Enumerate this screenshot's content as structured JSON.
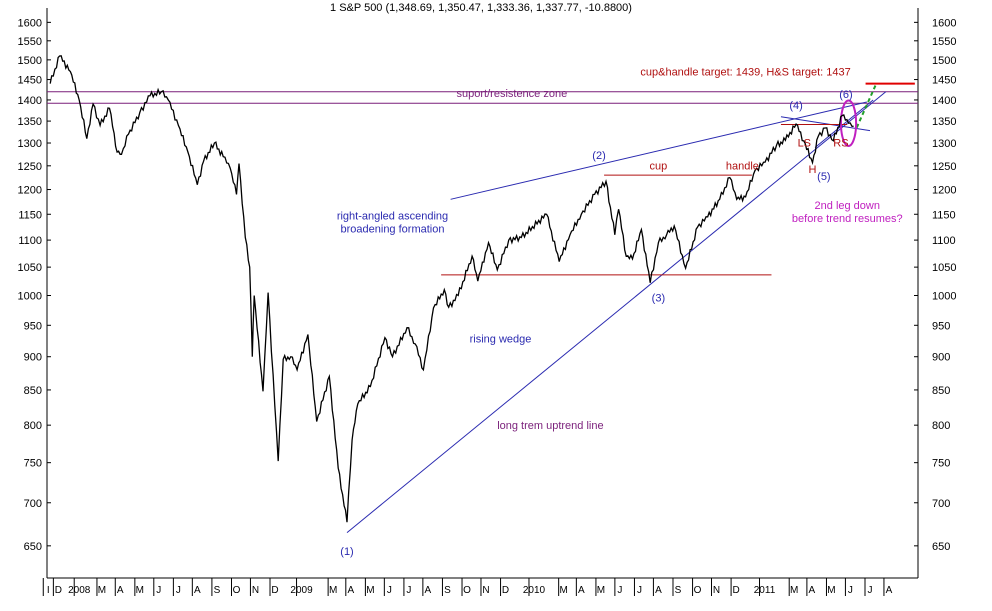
{
  "chart_data": {
    "type": "line",
    "title": "1 S&P 500 (1,348.69, 1,350.47, 1,333.36, 1,337.77, -10.8800)",
    "y_scale": "log",
    "ylim": [
      615,
      1640
    ],
    "y_ticks": [
      650,
      700,
      750,
      800,
      850,
      900,
      950,
      1000,
      1050,
      1100,
      1150,
      1200,
      1250,
      1300,
      1350,
      1400,
      1450,
      1500,
      1550,
      1600
    ],
    "x_range": [
      "2007-11-20",
      "2011-08-30"
    ],
    "x_tick_labels": [
      {
        "date": "2007-11-22",
        "label": "I"
      },
      {
        "date": "2007-12-08",
        "label": "D"
      },
      {
        "date": "2008-01-10",
        "label": "2008"
      },
      {
        "date": "2008-02-15",
        "label": "M"
      },
      {
        "date": "2008-03-15",
        "label": "A"
      },
      {
        "date": "2008-04-15",
        "label": "M"
      },
      {
        "date": "2008-05-15",
        "label": "J"
      },
      {
        "date": "2008-06-15",
        "label": "J"
      },
      {
        "date": "2008-07-15",
        "label": "A"
      },
      {
        "date": "2008-08-15",
        "label": "S"
      },
      {
        "date": "2008-09-15",
        "label": "O"
      },
      {
        "date": "2008-10-15",
        "label": "N"
      },
      {
        "date": "2008-11-15",
        "label": "D"
      },
      {
        "date": "2008-12-27",
        "label": "2009"
      },
      {
        "date": "2009-02-15",
        "label": "M"
      },
      {
        "date": "2009-03-15",
        "label": "A"
      },
      {
        "date": "2009-04-15",
        "label": "M"
      },
      {
        "date": "2009-05-15",
        "label": "J"
      },
      {
        "date": "2009-06-15",
        "label": "J"
      },
      {
        "date": "2009-07-15",
        "label": "A"
      },
      {
        "date": "2009-08-15",
        "label": "S"
      },
      {
        "date": "2009-09-15",
        "label": "O"
      },
      {
        "date": "2009-10-15",
        "label": "N"
      },
      {
        "date": "2009-11-15",
        "label": "D"
      },
      {
        "date": "2009-12-30",
        "label": "2010"
      },
      {
        "date": "2010-02-15",
        "label": "M"
      },
      {
        "date": "2010-03-15",
        "label": "A"
      },
      {
        "date": "2010-04-15",
        "label": "M"
      },
      {
        "date": "2010-05-15",
        "label": "J"
      },
      {
        "date": "2010-06-15",
        "label": "J"
      },
      {
        "date": "2010-07-15",
        "label": "A"
      },
      {
        "date": "2010-08-15",
        "label": "S"
      },
      {
        "date": "2010-09-15",
        "label": "O"
      },
      {
        "date": "2010-10-15",
        "label": "N"
      },
      {
        "date": "2010-11-15",
        "label": "D"
      },
      {
        "date": "2010-12-30",
        "label": "2011"
      },
      {
        "date": "2011-02-15",
        "label": "M"
      },
      {
        "date": "2011-03-15",
        "label": "A"
      },
      {
        "date": "2011-04-15",
        "label": "M"
      },
      {
        "date": "2011-05-15",
        "label": "J"
      },
      {
        "date": "2011-06-15",
        "label": "J"
      },
      {
        "date": "2011-07-15",
        "label": "A"
      }
    ],
    "series": [
      {
        "color": "#000000",
        "points": [
          [
            "2007-11-25",
            1440
          ],
          [
            "2007-12-10",
            1510
          ],
          [
            "2007-12-27",
            1470
          ],
          [
            "2008-01-10",
            1400
          ],
          [
            "2008-01-22",
            1310
          ],
          [
            "2008-02-01",
            1390
          ],
          [
            "2008-02-12",
            1340
          ],
          [
            "2008-02-27",
            1380
          ],
          [
            "2008-03-10",
            1280
          ],
          [
            "2008-03-17",
            1275
          ],
          [
            "2008-03-28",
            1320
          ],
          [
            "2008-04-15",
            1370
          ],
          [
            "2008-05-01",
            1410
          ],
          [
            "2008-05-19",
            1420
          ],
          [
            "2008-05-30",
            1400
          ],
          [
            "2008-06-15",
            1340
          ],
          [
            "2008-06-30",
            1280
          ],
          [
            "2008-07-15",
            1210
          ],
          [
            "2008-07-25",
            1260
          ],
          [
            "2008-08-11",
            1300
          ],
          [
            "2008-08-25",
            1270
          ],
          [
            "2008-09-05",
            1245
          ],
          [
            "2008-09-15",
            1190
          ],
          [
            "2008-09-19",
            1255
          ],
          [
            "2008-09-29",
            1105
          ],
          [
            "2008-10-06",
            1050
          ],
          [
            "2008-10-10",
            900
          ],
          [
            "2008-10-13",
            1000
          ],
          [
            "2008-10-27",
            848
          ],
          [
            "2008-11-04",
            1005
          ],
          [
            "2008-11-20",
            752
          ],
          [
            "2008-11-28",
            896
          ],
          [
            "2008-12-10",
            900
          ],
          [
            "2008-12-20",
            880
          ],
          [
            "2009-01-06",
            935
          ],
          [
            "2009-01-20",
            805
          ],
          [
            "2009-02-09",
            870
          ],
          [
            "2009-02-23",
            743
          ],
          [
            "2009-03-09",
            677
          ],
          [
            "2009-03-17",
            780
          ],
          [
            "2009-03-26",
            830
          ],
          [
            "2009-04-15",
            855
          ],
          [
            "2009-05-08",
            930
          ],
          [
            "2009-05-20",
            900
          ],
          [
            "2009-06-12",
            946
          ],
          [
            "2009-06-25",
            920
          ],
          [
            "2009-07-08",
            880
          ],
          [
            "2009-07-24",
            979
          ],
          [
            "2009-08-10",
            1010
          ],
          [
            "2009-08-17",
            980
          ],
          [
            "2009-09-01",
            1000
          ],
          [
            "2009-09-23",
            1070
          ],
          [
            "2009-10-02",
            1025
          ],
          [
            "2009-10-19",
            1095
          ],
          [
            "2009-11-02",
            1045
          ],
          [
            "2009-11-20",
            1100
          ],
          [
            "2009-12-10",
            1105
          ],
          [
            "2010-01-19",
            1150
          ],
          [
            "2010-02-08",
            1060
          ],
          [
            "2010-02-25",
            1110
          ],
          [
            "2010-03-15",
            1150
          ],
          [
            "2010-04-05",
            1190
          ],
          [
            "2010-04-23",
            1217
          ],
          [
            "2010-05-07",
            1110
          ],
          [
            "2010-05-13",
            1160
          ],
          [
            "2010-05-25",
            1070
          ],
          [
            "2010-06-04",
            1065
          ],
          [
            "2010-06-18",
            1120
          ],
          [
            "2010-07-02",
            1022
          ],
          [
            "2010-07-15",
            1095
          ],
          [
            "2010-07-28",
            1110
          ],
          [
            "2010-08-09",
            1127
          ],
          [
            "2010-08-27",
            1048
          ],
          [
            "2010-09-15",
            1125
          ],
          [
            "2010-10-01",
            1145
          ],
          [
            "2010-10-20",
            1180
          ],
          [
            "2010-11-05",
            1225
          ],
          [
            "2010-11-16",
            1180
          ],
          [
            "2010-11-30",
            1185
          ],
          [
            "2010-12-15",
            1240
          ],
          [
            "2010-12-31",
            1258
          ],
          [
            "2011-01-18",
            1295
          ],
          [
            "2011-02-01",
            1306
          ],
          [
            "2011-02-18",
            1343
          ],
          [
            "2011-03-02",
            1305
          ],
          [
            "2011-03-16",
            1257
          ],
          [
            "2011-03-25",
            1315
          ],
          [
            "2011-04-05",
            1334
          ],
          [
            "2011-04-18",
            1305
          ],
          [
            "2011-05-02",
            1363
          ],
          [
            "2011-05-12",
            1345
          ],
          [
            "2011-05-20",
            1338
          ]
        ]
      }
    ],
    "lines": [
      {
        "name": "support-resistance-top",
        "color": "#7a1f7a",
        "from": [
          "2007-11-20",
          1420
        ],
        "to": [
          "2011-08-30",
          1420
        ]
      },
      {
        "name": "support-resistance-bottom",
        "color": "#7a1f7a",
        "from": [
          "2007-11-20",
          1392
        ],
        "to": [
          "2011-08-30",
          1392
        ]
      },
      {
        "name": "long-term-uptrend",
        "color": "#2a2ab0",
        "from": [
          "2009-03-09",
          665
        ],
        "to": [
          "2011-07-10",
          1420
        ]
      },
      {
        "name": "broadening-upper",
        "color": "#2a2ab0",
        "from": [
          "2009-08-20",
          1180
        ],
        "to": [
          "2011-06-10",
          1395
        ]
      },
      {
        "name": "wedge-lower",
        "color": "#2a2ab0",
        "from": [
          "2011-01-25",
          1360
        ],
        "to": [
          "2011-06-15",
          1328
        ]
      },
      {
        "name": "wedge-upper",
        "color": "#2a2ab0",
        "from": [
          "2011-03-20",
          1290
        ],
        "to": [
          "2011-06-20",
          1400
        ]
      },
      {
        "name": "cup-rim",
        "color": "#b01010",
        "from": [
          "2010-04-20",
          1230
        ],
        "to": [
          "2010-12-10",
          1230
        ]
      },
      {
        "name": "neckline",
        "color": "#b01010",
        "from": [
          "2011-01-25",
          1342
        ],
        "to": [
          "2011-05-10",
          1342
        ]
      },
      {
        "name": "breakout-base",
        "color": "#b01010",
        "from": [
          "2009-08-05",
          1036
        ],
        "to": [
          "2011-01-10",
          1036
        ]
      },
      {
        "name": "target-line",
        "color": "#e00000",
        "from": [
          "2011-06-08",
          1440
        ],
        "to": [
          "2011-08-25",
          1440
        ]
      },
      {
        "name": "target-path",
        "color": "#22a02a",
        "dash": true,
        "from": [
          "2011-05-25",
          1335
        ],
        "to": [
          "2011-06-25",
          1440
        ]
      }
    ],
    "circle": {
      "name": "rs-circle",
      "color": "#c020c0",
      "center": [
        "2011-05-12",
        1345
      ],
      "rx_days": 12,
      "ry_ratio": 1.04
    },
    "annotations": [
      {
        "name": "annotation-targets",
        "text": "cup&handle target: 1439,       H&S target: 1437",
        "color": "#b01010",
        "at": [
          "2010-11-30",
          1460
        ]
      },
      {
        "name": "annotation-zone",
        "text": "suport/resistence zone",
        "color": "#7a1f7a",
        "at": [
          "2009-11-25",
          1407
        ]
      },
      {
        "name": "annotation-broadening",
        "text": "right-angled ascending\nbroadening formation",
        "color": "#2a2ab0",
        "at": [
          "2009-05-20",
          1140
        ]
      },
      {
        "name": "annotation-rising-wedge",
        "text": "rising wedge",
        "color": "#2a2ab0",
        "at": [
          "2009-11-07",
          922
        ]
      },
      {
        "name": "annotation-uptrend",
        "text": "long trem uptrend line",
        "color": "#7a1f7a",
        "at": [
          "2010-01-25",
          795
        ]
      },
      {
        "name": "annotation-second-leg",
        "text": "2nd leg down\nbefore trend resumes?",
        "color": "#c020c0",
        "at": [
          "2011-05-10",
          1160
        ]
      },
      {
        "name": "annotation-cup",
        "text": "cup",
        "color": "#b01010",
        "at": [
          "2010-07-15",
          1242
        ]
      },
      {
        "name": "annotation-handle",
        "text": "handle",
        "color": "#b01010",
        "at": [
          "2010-11-25",
          1242
        ]
      },
      {
        "name": "annotation-ls",
        "text": "LS",
        "color": "#b01010",
        "at": [
          "2011-03-03",
          1292
        ]
      },
      {
        "name": "annotation-h",
        "text": "H",
        "color": "#b01010",
        "at": [
          "2011-03-16",
          1235
        ]
      },
      {
        "name": "annotation-rs",
        "text": "RS",
        "color": "#b01010",
        "at": [
          "2011-04-30",
          1292
        ]
      },
      {
        "name": "annotation-wave-1",
        "text": "(1)",
        "color": "#2a2ab0",
        "at": [
          "2009-03-09",
          640
        ]
      },
      {
        "name": "annotation-wave-2",
        "text": "(2)",
        "color": "#2a2ab0",
        "at": [
          "2010-04-12",
          1265
        ]
      },
      {
        "name": "annotation-wave-3",
        "text": "(3)",
        "color": "#2a2ab0",
        "at": [
          "2010-07-15",
          990
        ]
      },
      {
        "name": "annotation-wave-4",
        "text": "(4)",
        "color": "#2a2ab0",
        "at": [
          "2011-02-18",
          1378
        ]
      },
      {
        "name": "annotation-wave-5",
        "text": "(5)",
        "color": "#2a2ab0",
        "at": [
          "2011-04-03",
          1220
        ]
      },
      {
        "name": "annotation-wave-6",
        "text": "(6)",
        "color": "#2a2ab0",
        "at": [
          "2011-05-08",
          1405
        ]
      }
    ]
  }
}
